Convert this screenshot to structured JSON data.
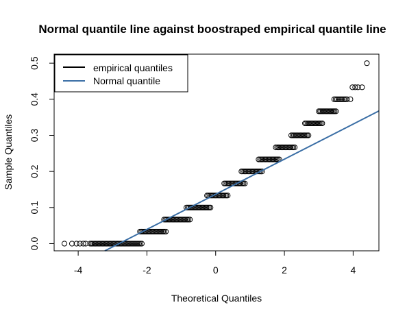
{
  "chart_data": {
    "type": "scatter",
    "title": "Normal quantile line against boostraped empirical quantile line",
    "xlabel": "Theoretical Quantiles",
    "ylabel": "Sample Quantiles",
    "xlim": [
      -4.7,
      4.75
    ],
    "ylim": [
      -0.02,
      0.525
    ],
    "x_ticks": [
      -4,
      -2,
      0,
      2,
      4
    ],
    "y_ticks": [
      0.0,
      0.1,
      0.2,
      0.3,
      0.4,
      0.5
    ],
    "x_tick_labels": [
      "-4",
      "-2",
      "0",
      "2",
      "4"
    ],
    "y_tick_labels": [
      "0.0",
      "0.1",
      "0.2",
      "0.3",
      "0.4",
      "0.5"
    ],
    "grid": false,
    "legend_position": "top-left",
    "legend": [
      {
        "label": "empirical quantiles",
        "color": "#000000"
      },
      {
        "label": "Normal quantile",
        "color": "#3a6ea5"
      }
    ],
    "series": [
      {
        "name": "empirical quantiles",
        "kind": "points",
        "color": "#000000",
        "steps": [
          {
            "y": 0.0,
            "x_from": -3.65,
            "x_to": -2.15
          },
          {
            "y": 0.0333,
            "x_from": -2.2,
            "x_to": -1.45
          },
          {
            "y": 0.0667,
            "x_from": -1.5,
            "x_to": -0.75
          },
          {
            "y": 0.1,
            "x_from": -0.85,
            "x_to": -0.15
          },
          {
            "y": 0.1333,
            "x_from": -0.25,
            "x_to": 0.35
          },
          {
            "y": 0.1667,
            "x_from": 0.25,
            "x_to": 0.85
          },
          {
            "y": 0.2,
            "x_from": 0.75,
            "x_to": 1.35
          },
          {
            "y": 0.2333,
            "x_from": 1.25,
            "x_to": 1.85
          },
          {
            "y": 0.2667,
            "x_from": 1.75,
            "x_to": 2.3
          },
          {
            "y": 0.3,
            "x_from": 2.2,
            "x_to": 2.7
          },
          {
            "y": 0.3333,
            "x_from": 2.6,
            "x_to": 3.1
          },
          {
            "y": 0.3667,
            "x_from": 3.0,
            "x_to": 3.5
          },
          {
            "y": 0.4,
            "x_from": 3.45,
            "x_to": 3.82
          }
        ],
        "isolated_points": [
          {
            "x": -4.4,
            "y": 0.0
          },
          {
            "x": -4.18,
            "y": 0.0
          },
          {
            "x": -4.05,
            "y": 0.0
          },
          {
            "x": -3.95,
            "y": 0.0
          },
          {
            "x": -3.85,
            "y": 0.0
          },
          {
            "x": -3.78,
            "y": 0.0
          },
          {
            "x": 3.92,
            "y": 0.4
          },
          {
            "x": 3.98,
            "y": 0.4333
          },
          {
            "x": 4.06,
            "y": 0.4333
          },
          {
            "x": 4.14,
            "y": 0.4333
          },
          {
            "x": 4.26,
            "y": 0.4333
          },
          {
            "x": 4.4,
            "y": 0.5
          }
        ]
      },
      {
        "name": "Normal quantile",
        "kind": "line",
        "color": "#3a6ea5",
        "intercept": 0.1367,
        "slope": 0.0486
      }
    ]
  }
}
